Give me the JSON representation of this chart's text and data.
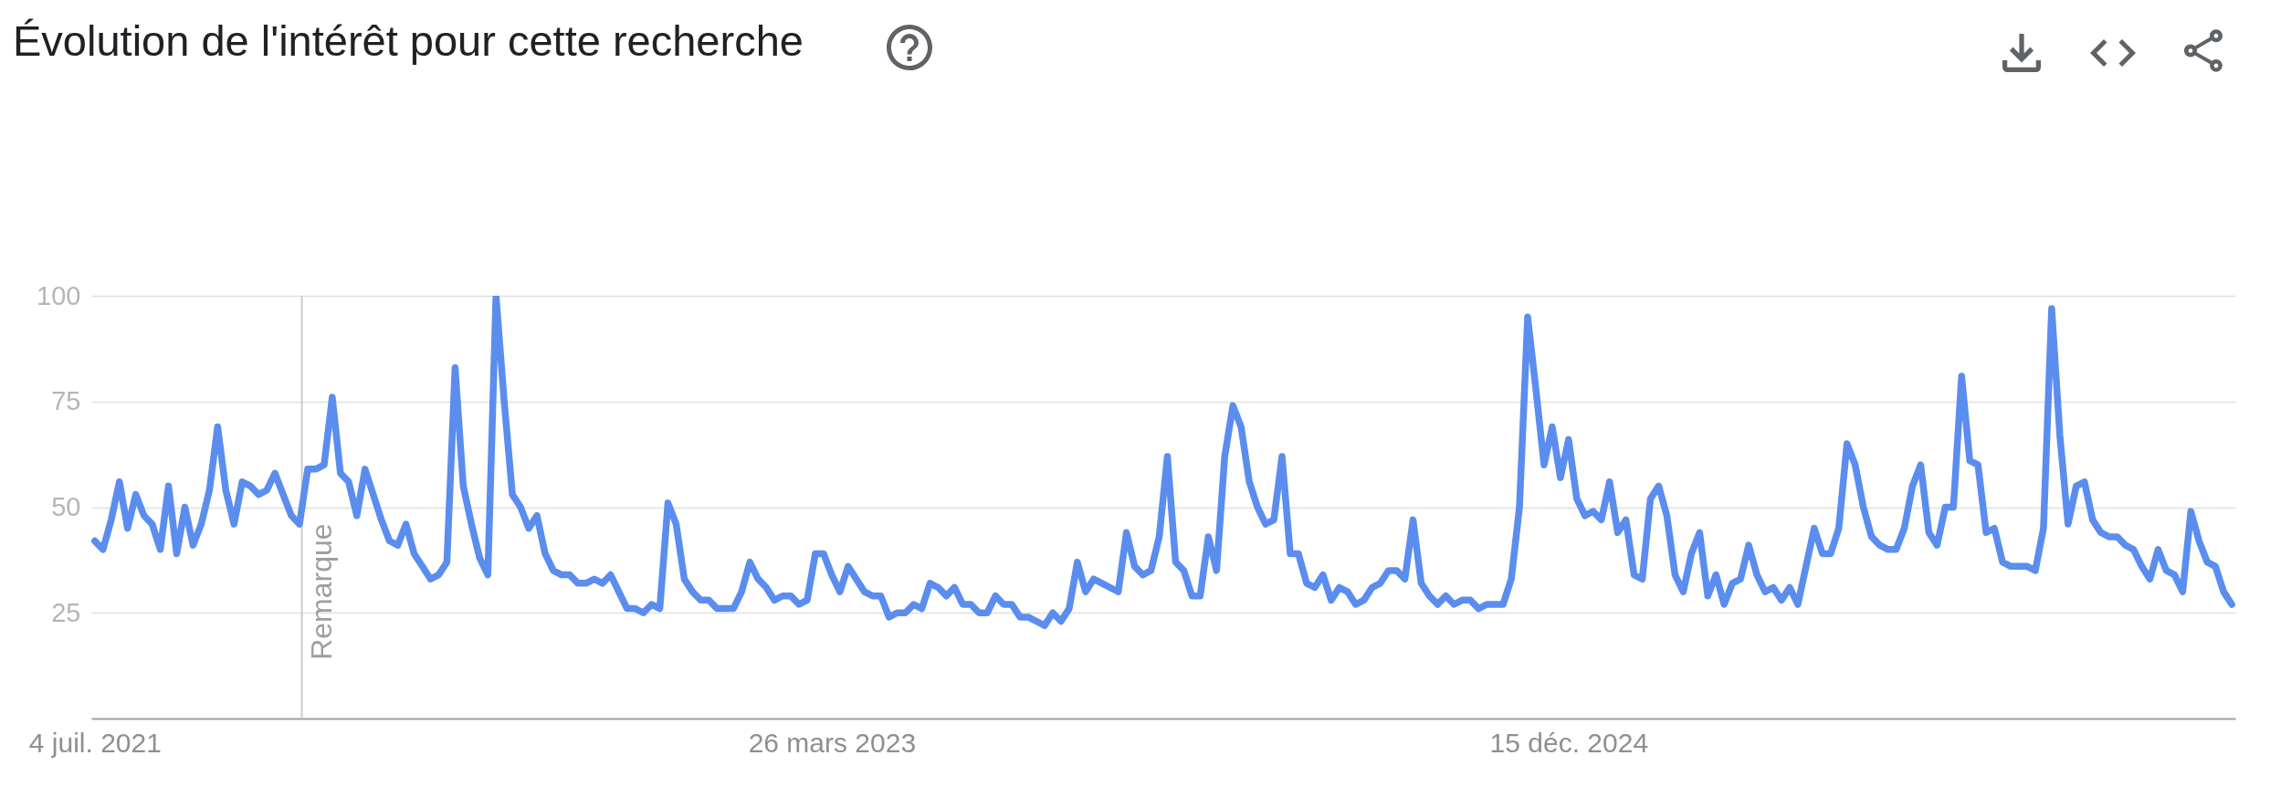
{
  "chart_data": {
    "type": "line",
    "title": "Évolution de l'intérêt pour cette recherche",
    "color": "#5b8def",
    "x": [
      "2021-07-04",
      "2021-07-11",
      "2021-07-18",
      "2021-07-25",
      "2021-08-01",
      "2021-08-08",
      "2021-08-15",
      "2021-08-22",
      "2021-08-29",
      "2021-09-05",
      "2021-09-12",
      "2021-09-19",
      "2021-09-26",
      "2021-10-03",
      "2021-10-10",
      "2021-10-17",
      "2021-10-24",
      "2021-10-31",
      "2021-11-07",
      "2021-11-14",
      "2021-11-21",
      "2021-11-28",
      "2021-12-05",
      "2021-12-12",
      "2021-12-19",
      "2021-12-26",
      "2022-01-02",
      "2022-01-09",
      "2022-01-16",
      "2022-01-23",
      "2022-01-30",
      "2022-02-06",
      "2022-02-13",
      "2022-02-20",
      "2022-02-27",
      "2022-03-06",
      "2022-03-13",
      "2022-03-20",
      "2022-03-27",
      "2022-04-03",
      "2022-04-10",
      "2022-04-17",
      "2022-04-24",
      "2022-05-01",
      "2022-05-08",
      "2022-05-15",
      "2022-05-22",
      "2022-05-29",
      "2022-06-05",
      "2022-06-12",
      "2022-06-19",
      "2022-06-26",
      "2022-07-03",
      "2022-07-10",
      "2022-07-17",
      "2022-07-24",
      "2022-07-31",
      "2022-08-07",
      "2022-08-14",
      "2022-08-21",
      "2022-08-28",
      "2022-09-04",
      "2022-09-11",
      "2022-09-18",
      "2022-09-25",
      "2022-10-02",
      "2022-10-09",
      "2022-10-16",
      "2022-10-23",
      "2022-10-30",
      "2022-11-06",
      "2022-11-13",
      "2022-11-20",
      "2022-11-27",
      "2022-12-04",
      "2022-12-11",
      "2022-12-18",
      "2022-12-25",
      "2023-01-01",
      "2023-01-08",
      "2023-01-15",
      "2023-01-22",
      "2023-01-29",
      "2023-02-05",
      "2023-02-12",
      "2023-02-19",
      "2023-02-26",
      "2023-03-05",
      "2023-03-12",
      "2023-03-19",
      "2023-03-26",
      "2023-04-02",
      "2023-04-09",
      "2023-04-16",
      "2023-04-23",
      "2023-04-30",
      "2023-05-07",
      "2023-05-14",
      "2023-05-21",
      "2023-05-28",
      "2023-06-04",
      "2023-06-11",
      "2023-06-18",
      "2023-06-25",
      "2023-07-02",
      "2023-07-09",
      "2023-07-16",
      "2023-07-23",
      "2023-07-30",
      "2023-08-06",
      "2023-08-13",
      "2023-08-20",
      "2023-08-27",
      "2023-09-03",
      "2023-09-10",
      "2023-09-17",
      "2023-09-24",
      "2023-10-01",
      "2023-10-08",
      "2023-10-15",
      "2023-10-22",
      "2023-10-29",
      "2023-11-05",
      "2023-11-12",
      "2023-11-19",
      "2023-11-26",
      "2023-12-03",
      "2023-12-10",
      "2023-12-17",
      "2023-12-24",
      "2023-12-31",
      "2024-01-07",
      "2024-01-14",
      "2024-01-21",
      "2024-01-28",
      "2024-02-04",
      "2024-02-11",
      "2024-02-18",
      "2024-02-25",
      "2024-03-03",
      "2024-03-10",
      "2024-03-17",
      "2024-03-24",
      "2024-03-31",
      "2024-04-07",
      "2024-04-14",
      "2024-04-21",
      "2024-04-28",
      "2024-05-05",
      "2024-05-12",
      "2024-05-19",
      "2024-05-26",
      "2024-06-02",
      "2024-06-09",
      "2024-06-16",
      "2024-06-23",
      "2024-06-30",
      "2024-07-07",
      "2024-07-14",
      "2024-07-21",
      "2024-07-28",
      "2024-08-04",
      "2024-08-11",
      "2024-08-18",
      "2024-08-25",
      "2024-09-01",
      "2024-09-08",
      "2024-09-15",
      "2024-09-22",
      "2024-09-29",
      "2024-10-06",
      "2024-10-13",
      "2024-10-20",
      "2024-10-27",
      "2024-11-03",
      "2024-11-10",
      "2024-11-17",
      "2024-11-24",
      "2024-12-01",
      "2024-12-08",
      "2024-12-15",
      "2024-12-22",
      "2024-12-29",
      "2025-01-05",
      "2025-01-12",
      "2025-01-19",
      "2025-01-26",
      "2025-02-02",
      "2025-02-09",
      "2025-02-16",
      "2025-02-23",
      "2025-03-02",
      "2025-03-09",
      "2025-03-16",
      "2025-03-23",
      "2025-03-30",
      "2025-04-06",
      "2025-04-13",
      "2025-04-20",
      "2025-04-27",
      "2025-05-04",
      "2025-05-11",
      "2025-05-18",
      "2025-05-25",
      "2025-06-01",
      "2025-06-08",
      "2025-06-15",
      "2025-06-22",
      "2025-06-29",
      "2025-07-06",
      "2025-07-13",
      "2025-07-20",
      "2025-07-27",
      "2025-08-03",
      "2025-08-10",
      "2025-08-17",
      "2025-08-24",
      "2025-08-31",
      "2025-09-07",
      "2025-09-14",
      "2025-09-21",
      "2025-09-28",
      "2025-10-05",
      "2025-10-12",
      "2025-10-19",
      "2025-10-26",
      "2025-11-02",
      "2025-11-09",
      "2025-11-16",
      "2025-11-23",
      "2025-11-30",
      "2025-12-07",
      "2025-12-14",
      "2025-12-21",
      "2025-12-28",
      "2026-01-04",
      "2026-01-11",
      "2026-01-18",
      "2026-01-25",
      "2026-02-01",
      "2026-02-08",
      "2026-02-15",
      "2026-02-22",
      "2026-03-01",
      "2026-03-08",
      "2026-03-15",
      "2026-03-22",
      "2026-03-29",
      "2026-04-05",
      "2026-04-12",
      "2026-04-19",
      "2026-04-26",
      "2026-05-03",
      "2026-05-10",
      "2026-05-17",
      "2026-05-24",
      "2026-05-31",
      "2026-06-07",
      "2026-06-14",
      "2026-06-21",
      "2026-06-28",
      "2026-07-05"
    ],
    "values": [
      42,
      40,
      47,
      56,
      45,
      53,
      48,
      46,
      40,
      55,
      39,
      50,
      41,
      46,
      54,
      69,
      54,
      46,
      56,
      55,
      53,
      54,
      58,
      53,
      48,
      46,
      59,
      59,
      60,
      76,
      58,
      56,
      48,
      59,
      53,
      47,
      42,
      41,
      46,
      39,
      36,
      33,
      34,
      37,
      83,
      55,
      46,
      38,
      34,
      100,
      75,
      53,
      50,
      45,
      48,
      39,
      35,
      34,
      34,
      32,
      32,
      33,
      32,
      34,
      30,
      26,
      26,
      25,
      27,
      26,
      51,
      46,
      33,
      30,
      28,
      28,
      26,
      26,
      26,
      30,
      37,
      33,
      31,
      28,
      29,
      29,
      27,
      28,
      39,
      39,
      34,
      30,
      36,
      33,
      30,
      29,
      29,
      24,
      25,
      25,
      27,
      26,
      32,
      31,
      29,
      31,
      27,
      27,
      25,
      25,
      29,
      27,
      27,
      24,
      24,
      23,
      22,
      25,
      23,
      26,
      37,
      30,
      33,
      32,
      31,
      30,
      44,
      36,
      34,
      35,
      43,
      62,
      37,
      35,
      29,
      29,
      43,
      35,
      62,
      74,
      69,
      56,
      50,
      46,
      47,
      62,
      39,
      39,
      32,
      31,
      34,
      28,
      31,
      30,
      27,
      28,
      31,
      32,
      35,
      35,
      33,
      47,
      32,
      29,
      27,
      29,
      27,
      28,
      28,
      26,
      27,
      27,
      27,
      33,
      50,
      95,
      78,
      60,
      69,
      57,
      66,
      52,
      48,
      49,
      47,
      56,
      44,
      47,
      34,
      33,
      52,
      55,
      48,
      34,
      30,
      39,
      44,
      29,
      34,
      27,
      32,
      33,
      41,
      34,
      30,
      31,
      28,
      31,
      27,
      36,
      45,
      39,
      39,
      45,
      65,
      60,
      50,
      43,
      41,
      40,
      40,
      45,
      55,
      60,
      44,
      41,
      50,
      50,
      81,
      61,
      60,
      44,
      45,
      37,
      36,
      36,
      36,
      35,
      45,
      97,
      67,
      46,
      55,
      56,
      47,
      44,
      43,
      43,
      41,
      40,
      36,
      33,
      40,
      35,
      34,
      30,
      49,
      42,
      37,
      36,
      30,
      27
    ],
    "xlim": [
      "2021-07-01",
      "2026-07-08"
    ],
    "xticks": [
      {
        "value": "2021-07-04",
        "label": "4 juil. 2021"
      },
      {
        "value": "2023-03-26",
        "label": "26 mars 2023"
      },
      {
        "value": "2024-12-15",
        "label": "15 déc. 2024"
      }
    ],
    "ylim": [
      0,
      100
    ],
    "yticks": [
      25,
      50,
      75,
      100
    ],
    "grid": "y",
    "ref_lines": [
      {
        "axis": "x",
        "value": "2021-12-28",
        "label": "Remarque",
        "color": "#cccccc"
      }
    ]
  }
}
